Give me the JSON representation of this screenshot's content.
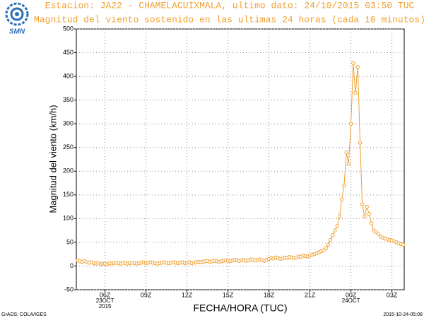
{
  "chart_data": {
    "type": "line",
    "title": "Estacion: JA22 - CHAMELACUIXMALA, ultimo dato: 24/10/2015 03:50 TUC",
    "subtitle": "Magnitud del viento sostenido en las ultimas 24 horas (cada 10 minutos)",
    "ylabel": "Magnitud del viento (km/h)",
    "xlabel": "FECHA/HORA (TUC)",
    "logo": "SMN",
    "footer_left": "GrADS: COLA/IGES",
    "footer_right": "2015-10-24-05:08",
    "color": "#f0a030",
    "grid": true,
    "xlim": [
      3.9,
      27.9
    ],
    "ylim": [
      -50,
      500
    ],
    "yticks": [
      -50,
      0,
      50,
      100,
      150,
      200,
      250,
      300,
      350,
      400,
      450,
      500
    ],
    "xticks": [
      {
        "value": 6,
        "label": "06Z"
      },
      {
        "value": 9,
        "label": "09Z"
      },
      {
        "value": 12,
        "label": "12Z"
      },
      {
        "value": 15,
        "label": "15Z"
      },
      {
        "value": 18,
        "label": "18Z"
      },
      {
        "value": 21,
        "label": "21Z"
      },
      {
        "value": 24,
        "label": "00Z"
      },
      {
        "value": 27,
        "label": "03Z"
      }
    ],
    "x_sublabels": [
      {
        "value": 6,
        "lines": [
          "23OCT",
          "2015"
        ]
      },
      {
        "value": 24,
        "lines": [
          "24OCT"
        ]
      }
    ],
    "x": [
      4,
      4.17,
      4.33,
      4.5,
      4.67,
      4.83,
      5,
      5.17,
      5.33,
      5.5,
      5.67,
      5.83,
      6,
      6.17,
      6.33,
      6.5,
      6.67,
      6.83,
      7,
      7.17,
      7.33,
      7.5,
      7.67,
      7.83,
      8,
      8.17,
      8.33,
      8.5,
      8.67,
      8.83,
      9,
      9.17,
      9.33,
      9.5,
      9.67,
      9.83,
      10,
      10.17,
      10.33,
      10.5,
      10.67,
      10.83,
      11,
      11.17,
      11.33,
      11.5,
      11.67,
      11.83,
      12,
      12.17,
      12.33,
      12.5,
      12.67,
      12.83,
      13,
      13.17,
      13.33,
      13.5,
      13.67,
      13.83,
      14,
      14.17,
      14.33,
      14.5,
      14.67,
      14.83,
      15,
      15.17,
      15.33,
      15.5,
      15.67,
      15.83,
      16,
      16.17,
      16.33,
      16.5,
      16.67,
      16.83,
      17,
      17.17,
      17.33,
      17.5,
      17.67,
      17.83,
      18,
      18.17,
      18.33,
      18.5,
      18.67,
      18.83,
      19,
      19.17,
      19.33,
      19.5,
      19.67,
      19.83,
      20,
      20.17,
      20.33,
      20.5,
      20.67,
      20.83,
      21,
      21.17,
      21.33,
      21.5,
      21.67,
      21.83,
      22,
      22.17,
      22.33,
      22.5,
      22.67,
      22.83,
      23,
      23.17,
      23.33,
      23.5,
      23.67,
      23.83,
      24,
      24.17,
      24.33,
      24.5,
      24.67,
      24.83,
      25,
      25.17,
      25.33,
      25.5,
      25.67,
      25.83,
      26,
      26.17,
      26.33,
      26.5,
      26.67,
      26.83,
      27,
      27.17,
      27.33,
      27.5,
      27.67,
      27.83
    ],
    "values": [
      12,
      10,
      9,
      11,
      8,
      7,
      8,
      6,
      5,
      7,
      4,
      5,
      5,
      4,
      6,
      5,
      6,
      7,
      6,
      5,
      7,
      6,
      5,
      6,
      7,
      6,
      5,
      6,
      7,
      8,
      6,
      7,
      8,
      7,
      6,
      5,
      6,
      7,
      8,
      7,
      6,
      7,
      8,
      7,
      6,
      7,
      8,
      6,
      7,
      8,
      6,
      7,
      8,
      9,
      8,
      9,
      10,
      11,
      9,
      10,
      11,
      10,
      9,
      10,
      11,
      12,
      11,
      10,
      12,
      13,
      12,
      11,
      12,
      13,
      11,
      12,
      14,
      13,
      12,
      13,
      14,
      12,
      11,
      13,
      15,
      17,
      16,
      18,
      17,
      15,
      16,
      18,
      17,
      19,
      18,
      17,
      18,
      20,
      19,
      22,
      21,
      20,
      22,
      24,
      25,
      27,
      29,
      31,
      33,
      38,
      45,
      55,
      65,
      75,
      85,
      105,
      140,
      170,
      240,
      215,
      300,
      428,
      365,
      420,
      260,
      130,
      105,
      125,
      110,
      90,
      75,
      72,
      68,
      62,
      60,
      58,
      56,
      55,
      54,
      52,
      50,
      48,
      46,
      45
    ]
  }
}
